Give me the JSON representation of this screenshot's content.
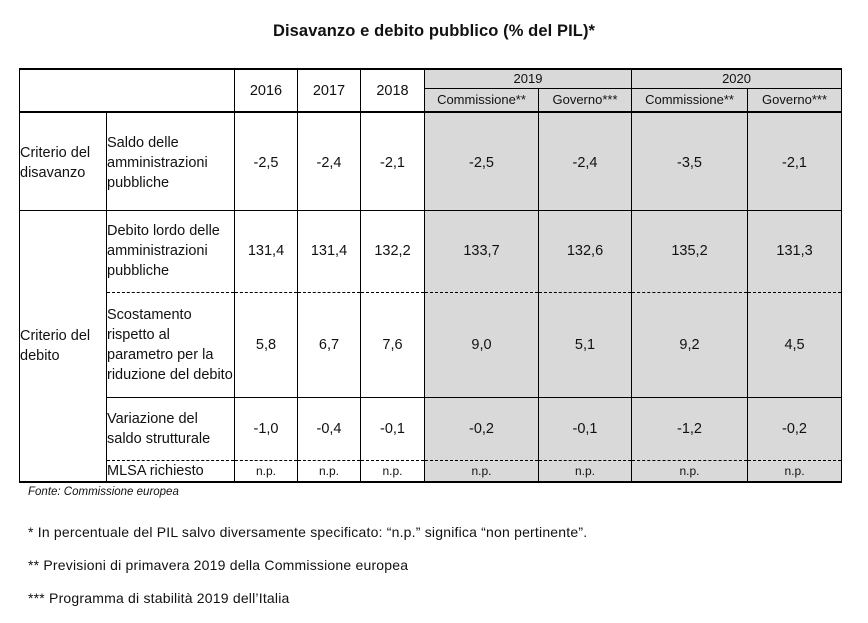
{
  "title": "Disavanzo e debito pubblico (% del PIL)*",
  "header": {
    "years": [
      "2016",
      "2017",
      "2018"
    ],
    "year_2019": "2019",
    "year_2020": "2020",
    "sub_2019": [
      "Commissione**",
      "Governo***"
    ],
    "sub_2020": [
      "Commissione**",
      "Governo***"
    ]
  },
  "criteria": {
    "deficit": "Criterio del disavanzo",
    "debt": "Criterio del debito"
  },
  "rows": [
    {
      "label": "Saldo delle amministrazioni pubbliche",
      "values": [
        "-2,5",
        "-2,4",
        "-2,1",
        "-2,5",
        "-2,4",
        "-3,5",
        "-2,1"
      ]
    },
    {
      "label": "Debito lordo delle amministrazioni pubbliche",
      "values": [
        "131,4",
        "131,4",
        "132,2",
        "133,7",
        "132,6",
        "135,2",
        "131,3"
      ]
    },
    {
      "label": "Scostamento rispetto al parametro per la riduzione del debito",
      "values": [
        "5,8",
        "6,7",
        "7,6",
        "9,0",
        "5,1",
        "9,2",
        "4,5"
      ]
    },
    {
      "label": "Variazione del saldo strutturale",
      "values": [
        "-1,0",
        "-0,4",
        "-0,1",
        "-0,2",
        "-0,1",
        "-1,2",
        "-0,2"
      ]
    },
    {
      "label": "MLSA richiesto",
      "values": [
        "n.p.",
        "n.p.",
        "n.p.",
        "n.p.",
        "n.p.",
        "n.p.",
        "n.p."
      ]
    }
  ],
  "source": "Fonte: Commissione europea",
  "notes": [
    "* In percentuale del PIL salvo diversamente specificato: “n.p.” significa “non pertinente”.",
    "** Previsioni di primavera 2019 della Commissione europea",
    "*** Programma di stabilità 2019 dell’Italia"
  ]
}
